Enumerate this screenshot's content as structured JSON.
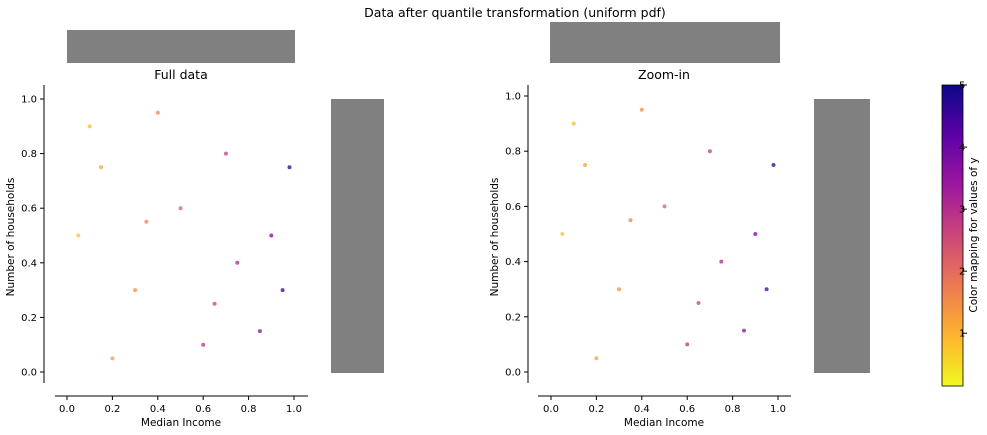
{
  "figure": {
    "title": "Data after quantile transformation (uniform pdf)"
  },
  "chart_data": [
    {
      "type": "scatter",
      "title": "Full data",
      "xlabel": "Median Income",
      "ylabel": "Number of households",
      "xlim": [
        0.0,
        1.0
      ],
      "ylim": [
        0.0,
        1.0
      ],
      "x_ticks": [
        "0.0",
        "0.2",
        "0.4",
        "0.6",
        "0.8",
        "1.0"
      ],
      "y_ticks": [
        "0.0",
        "0.2",
        "0.4",
        "0.6",
        "0.8",
        "1.0"
      ],
      "marginal_histograms": "top (x) and right (y), nearly uniform",
      "grid": false,
      "points": [
        [
          0.1,
          0.9,
          0.9
        ],
        [
          0.15,
          0.75,
          1.2
        ],
        [
          0.05,
          0.5,
          0.8
        ],
        [
          0.3,
          0.3,
          1.5
        ],
        [
          0.5,
          0.6,
          2.2
        ],
        [
          0.7,
          0.8,
          2.8
        ],
        [
          0.9,
          0.5,
          3.9
        ],
        [
          0.95,
          0.3,
          4.5
        ],
        [
          0.85,
          0.15,
          3.6
        ],
        [
          0.6,
          0.1,
          2.9
        ],
        [
          0.2,
          0.05,
          1.3
        ],
        [
          0.98,
          0.75,
          4.8
        ],
        [
          0.4,
          0.95,
          1.6
        ],
        [
          0.75,
          0.4,
          3.1
        ],
        [
          0.35,
          0.55,
          1.7
        ],
        [
          0.65,
          0.25,
          2.7
        ]
      ]
    },
    {
      "type": "scatter",
      "title": "Zoom-in",
      "xlabel": "Median Income",
      "ylabel": "Number of households",
      "xlim": [
        0.0,
        1.0
      ],
      "ylim": [
        0.0,
        1.0
      ],
      "x_ticks": [
        "0.0",
        "0.2",
        "0.4",
        "0.6",
        "0.8",
        "1.0"
      ],
      "y_ticks": [
        "0.0",
        "0.2",
        "0.4",
        "0.6",
        "0.8",
        "1.0"
      ],
      "marginal_histograms": "top (x) and right (y), nearly uniform",
      "grid": false,
      "points": [
        [
          0.1,
          0.9,
          0.9
        ],
        [
          0.15,
          0.75,
          1.2
        ],
        [
          0.05,
          0.5,
          0.8
        ],
        [
          0.3,
          0.3,
          1.5
        ],
        [
          0.5,
          0.6,
          2.2
        ],
        [
          0.7,
          0.8,
          2.8
        ],
        [
          0.9,
          0.5,
          3.9
        ],
        [
          0.95,
          0.3,
          4.5
        ],
        [
          0.85,
          0.15,
          3.6
        ],
        [
          0.6,
          0.1,
          2.9
        ],
        [
          0.2,
          0.05,
          1.3
        ],
        [
          0.98,
          0.75,
          4.8
        ],
        [
          0.4,
          0.95,
          1.6
        ],
        [
          0.75,
          0.4,
          3.1
        ],
        [
          0.35,
          0.55,
          1.7
        ],
        [
          0.65,
          0.25,
          2.7
        ]
      ]
    }
  ],
  "colorbar": {
    "label": "Color mapping for values of y",
    "range": [
      0.15,
      5.0
    ],
    "ticks": [
      "1",
      "2",
      "3",
      "4",
      "5"
    ],
    "tick_values": [
      1,
      2,
      3,
      4,
      5
    ],
    "colormap": "plasma_r",
    "stops": [
      "#f0f921",
      "#fdb42f",
      "#ed7953",
      "#cc4778",
      "#9c179e",
      "#5c01a6",
      "#0d0887"
    ]
  },
  "histogram_color": "#808080"
}
